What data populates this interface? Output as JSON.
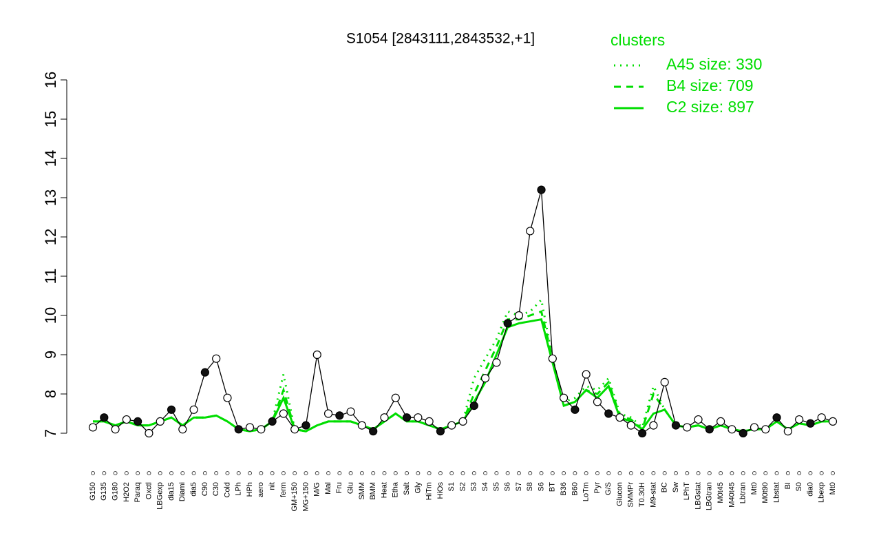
{
  "chart_data": {
    "type": "line",
    "title": "S1054 [2843111,2843532,+1]",
    "legend_title": "clusters",
    "categories": [
      "G150",
      "G135",
      "G180",
      "H2O2",
      "Paraq",
      "Oxctl",
      "LBGexp",
      "dia15",
      "Diami",
      "dia5",
      "C90",
      "C30",
      "Cold",
      "LPh",
      "HPh",
      "aero",
      "nit",
      "ferm",
      "GM+150",
      "MG+150",
      "M/G",
      "Mal",
      "Fru",
      "Glu",
      "SMM",
      "BMM",
      "Heat",
      "Etha",
      "Salt",
      "Gly",
      "HiTm",
      "HiOs",
      "S1",
      "S2",
      "S3",
      "S4",
      "S5",
      "S6",
      "S7",
      "S8",
      "S6",
      "BT",
      "B36",
      "B60",
      "LoTm",
      "Pyr",
      "G/S",
      "Glucon",
      "SMMPr",
      "T0.30H",
      "M9-stat",
      "BC",
      "Sw",
      "LPhT",
      "LBGstat",
      "LBGtran",
      "M0t45",
      "M40t45",
      "Lbtran",
      "Mt0",
      "M0t90",
      "Lbstat",
      "BI",
      "S0",
      "dia0",
      "Lbexp",
      "Mt0"
    ],
    "series": [
      {
        "name": "A45 size: 330",
        "color": "#00dd00",
        "dash": "dotted",
        "values": [
          7.3,
          7.3,
          7.2,
          7.3,
          7.2,
          7.2,
          7.3,
          7.4,
          7.2,
          7.4,
          7.4,
          7.45,
          7.3,
          7.1,
          7.05,
          7.1,
          7.3,
          8.5,
          7.1,
          7.05,
          7.2,
          7.3,
          7.3,
          7.3,
          7.2,
          7.1,
          7.3,
          7.5,
          7.3,
          7.3,
          7.2,
          7.1,
          7.2,
          7.3,
          8.4,
          8.9,
          9.4,
          10.1,
          10.0,
          10.1,
          10.4,
          8.9,
          7.8,
          7.9,
          8.2,
          8.1,
          8.4,
          7.5,
          7.4,
          7.15,
          8.2,
          7.6,
          7.2,
          7.15,
          7.2,
          7.1,
          7.2,
          7.1,
          7.05,
          7.1,
          7.1,
          7.3,
          7.1,
          7.25,
          7.2,
          7.3,
          7.3
        ]
      },
      {
        "name": "B4 size: 709",
        "color": "#00dd00",
        "dash": "dashed",
        "values": [
          7.3,
          7.3,
          7.2,
          7.3,
          7.2,
          7.2,
          7.3,
          7.4,
          7.2,
          7.4,
          7.4,
          7.45,
          7.3,
          7.1,
          7.05,
          7.1,
          7.3,
          8.1,
          7.1,
          7.05,
          7.2,
          7.3,
          7.3,
          7.3,
          7.2,
          7.1,
          7.3,
          7.5,
          7.3,
          7.3,
          7.2,
          7.1,
          7.2,
          7.3,
          8.0,
          8.6,
          9.2,
          9.9,
          9.9,
          10.0,
          10.1,
          8.9,
          7.7,
          7.8,
          8.1,
          8.0,
          8.3,
          7.45,
          7.35,
          7.1,
          8.0,
          7.6,
          7.2,
          7.15,
          7.2,
          7.1,
          7.2,
          7.1,
          7.05,
          7.1,
          7.1,
          7.3,
          7.1,
          7.25,
          7.2,
          7.3,
          7.3
        ]
      },
      {
        "name": "C2 size: 897",
        "color": "#00dd00",
        "dash": "solid",
        "values": [
          7.3,
          7.3,
          7.2,
          7.3,
          7.2,
          7.2,
          7.3,
          7.4,
          7.2,
          7.4,
          7.4,
          7.45,
          7.3,
          7.1,
          7.05,
          7.1,
          7.3,
          7.9,
          7.1,
          7.05,
          7.2,
          7.3,
          7.3,
          7.3,
          7.2,
          7.1,
          7.3,
          7.5,
          7.3,
          7.3,
          7.2,
          7.1,
          7.2,
          7.3,
          7.8,
          8.3,
          9.0,
          9.7,
          9.8,
          9.85,
          9.9,
          8.8,
          7.7,
          7.8,
          8.1,
          7.9,
          8.2,
          7.4,
          7.3,
          7.1,
          7.5,
          7.6,
          7.2,
          7.15,
          7.2,
          7.1,
          7.2,
          7.1,
          7.05,
          7.1,
          7.1,
          7.3,
          7.1,
          7.25,
          7.2,
          7.3,
          7.3
        ]
      },
      {
        "color": "#000000",
        "values": [
          7.15,
          7.4,
          7.1,
          7.35,
          7.3,
          7.0,
          7.3,
          7.6,
          7.1,
          7.6,
          8.55,
          8.9,
          7.9,
          7.1,
          7.15,
          7.1,
          7.3,
          7.5,
          7.1,
          7.2,
          9.0,
          7.5,
          7.45,
          7.55,
          7.2,
          7.05,
          7.4,
          7.9,
          7.4,
          7.4,
          7.3,
          7.05,
          7.2,
          7.3,
          7.7,
          8.4,
          8.8,
          9.8,
          10.0,
          12.15,
          13.2,
          8.9,
          7.9,
          7.6,
          8.5,
          7.8,
          7.5,
          7.4,
          7.2,
          7.0,
          7.2,
          8.3,
          7.2,
          7.15,
          7.35,
          7.1,
          7.3,
          7.1,
          7.0,
          7.15,
          7.1,
          7.4,
          7.05,
          7.35,
          7.25,
          7.4,
          7.3
        ]
      }
    ],
    "ylim": [
      7,
      16
    ],
    "yticks": [
      7,
      8,
      9,
      10,
      11,
      12,
      13,
      14,
      15,
      16
    ]
  }
}
